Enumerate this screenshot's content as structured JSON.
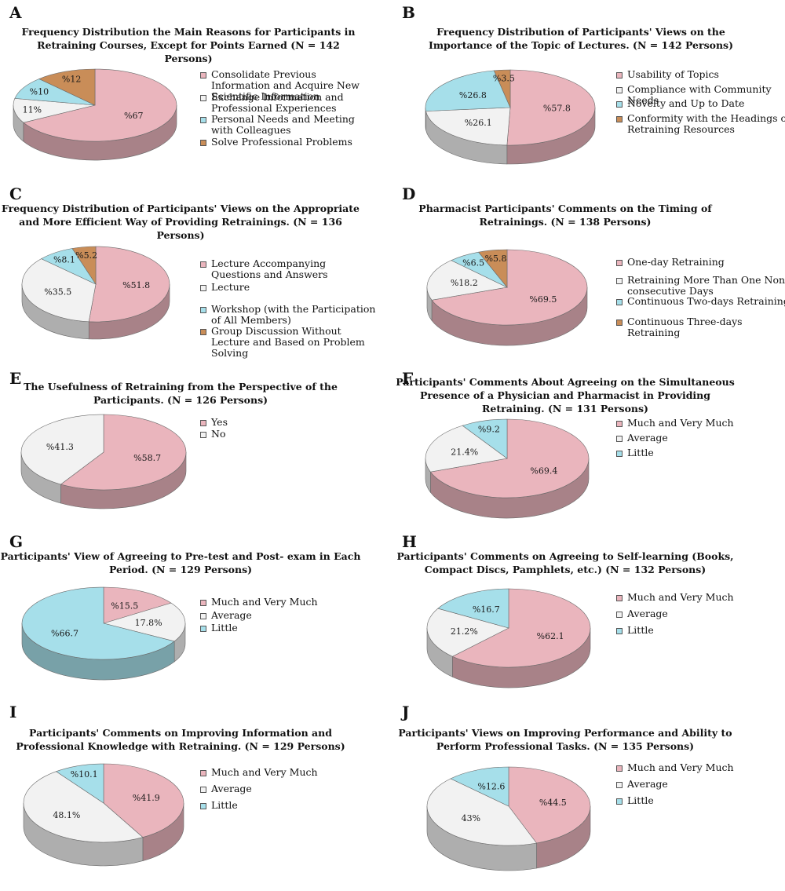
{
  "colors": {
    "pink": "#eab5bd",
    "white": "#f2f2f2",
    "cyan": "#a6dfea",
    "orange": "#c98d58"
  },
  "chart_data": [
    {
      "type": "pie",
      "letter": "A",
      "title": "Frequency Distribution the Main Reasons for Participants in Retraining Courses, Except for Points Earned (N = 142 Persons)",
      "categories": [
        "Consolidate Previous Information and Acquire New Scientific Information",
        "Exchange Information and Professional Experiences",
        "Personal Needs and Meeting with Colleagues",
        "Solve Professional Problems"
      ],
      "values": [
        67,
        11,
        10,
        12
      ],
      "labels": [
        "%67",
        "11%",
        "%10",
        "%12"
      ],
      "legend": "right"
    },
    {
      "type": "pie",
      "letter": "B",
      "title": "Frequency Distribution of Participants' Views on the Importance of the Topic of Lectures. (N = 142 Persons)",
      "categories": [
        "Usability of Topics",
        "Compliance with Community Needs",
        "Novelty and Up to Date",
        "Conformity with the Headings of Retraining Resources"
      ],
      "values": [
        57.8,
        26.1,
        26.8,
        3.5
      ],
      "labels": [
        "%57.8",
        "%26.1",
        "%26.8",
        "%3.5"
      ],
      "legend": "right"
    },
    {
      "type": "pie",
      "letter": "C",
      "title": "Frequency Distribution of Participants' Views on the Appropriate and More Efficient Way of Providing Retrainings. (N = 136 Persons)",
      "categories": [
        "Lecture Accompanying Questions and Answers",
        "Lecture",
        "Workshop (with the Participation of All Members)",
        "Group Discussion Without Lecture and Based on Problem Solving"
      ],
      "values": [
        51.8,
        35.5,
        8.1,
        5.2
      ],
      "labels": [
        "%51.8",
        "%35.5",
        "%8.1",
        "%5.2"
      ],
      "legend": "right"
    },
    {
      "type": "pie",
      "letter": "D",
      "title": "Pharmacist Participants' Comments on the Timing of Retrainings. (N = 138 Persons)",
      "categories": [
        "One-day Retraining",
        "Retraining More Than One Non-consecutive Days",
        "Continuous Two-days Retraining",
        "Continuous Three-days Retraining"
      ],
      "values": [
        69.5,
        18.2,
        6.5,
        5.8
      ],
      "labels": [
        "%69.5",
        "%18.2",
        "%6.5",
        "%5.8"
      ],
      "legend": "right"
    },
    {
      "type": "pie",
      "letter": "E",
      "title": "The Usefulness of Retraining from the Perspective of the Participants. (N = 126 Persons)",
      "categories": [
        "Yes",
        "No"
      ],
      "values": [
        58.7,
        41.3
      ],
      "labels": [
        "%58.7",
        "%41.3"
      ],
      "legend": "right"
    },
    {
      "type": "pie",
      "letter": "F",
      "title": "Participants' Comments About Agreeing on the Simultaneous Presence of a Physician and Pharmacist in Providing Retraining. (N = 131 Persons)",
      "categories": [
        "Much and Very Much",
        "Average",
        "Little"
      ],
      "values": [
        69.4,
        21.4,
        9.2
      ],
      "labels": [
        "%69.4",
        "21.4%",
        "%9.2"
      ],
      "legend": "right"
    },
    {
      "type": "pie",
      "letter": "G",
      "title": "Participants' View of Agreeing to Pre-test and Post- exam in Each Period. (N = 129 Persons)",
      "categories": [
        "Much and Very Much",
        "Average",
        "Little"
      ],
      "values": [
        15.5,
        17.8,
        66.7
      ],
      "labels": [
        "%15.5",
        "17.8%",
        "%66.7"
      ],
      "legend": "right"
    },
    {
      "type": "pie",
      "letter": "H",
      "title": "Participants' Comments on Agreeing to Self-learning (Books, Compact Discs, Pamphlets, etc.) (N = 132 Persons)",
      "categories": [
        "Much and Very Much",
        "Average",
        "Little"
      ],
      "values": [
        62.1,
        21.2,
        16.7
      ],
      "labels": [
        "%62.1",
        "21.2%",
        "%16.7"
      ],
      "legend": "right"
    },
    {
      "type": "pie",
      "letter": "I",
      "title": "Participants' Comments on Improving Information and Professional Knowledge with Retraining. (N = 129 Persons)",
      "categories": [
        "Much and Very Much",
        "Average",
        "Little"
      ],
      "values": [
        41.9,
        48.1,
        10.1
      ],
      "labels": [
        "%41.9",
        "48.1%",
        "%10.1"
      ],
      "legend": "right"
    },
    {
      "type": "pie",
      "letter": "J",
      "title": "Participants' Views on Improving Performance and Ability to Perform Professional Tasks. (N = 135 Persons)",
      "categories": [
        "Much and Very Much",
        "Average",
        "Little"
      ],
      "values": [
        44.5,
        43,
        12.6
      ],
      "labels": [
        "%44.5",
        "43%",
        "%12.6"
      ],
      "legend": "right"
    }
  ]
}
